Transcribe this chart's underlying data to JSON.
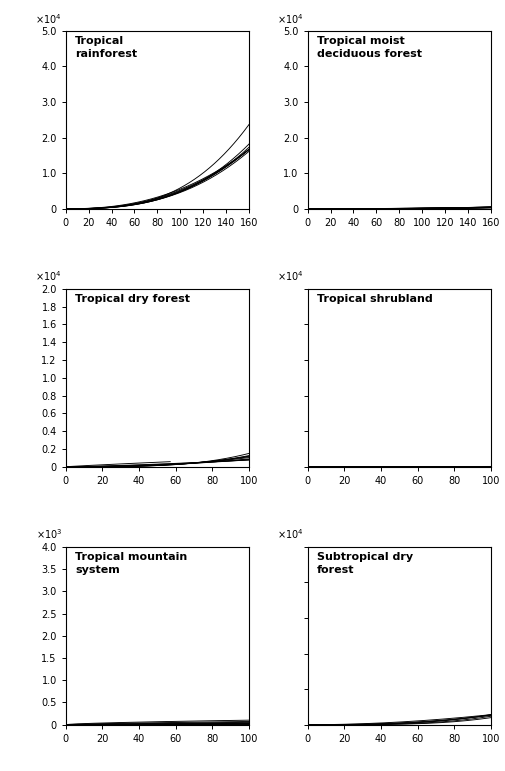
{
  "subplots": [
    {
      "title": "Tropical\nrainforest",
      "xmax": 160,
      "xticks": [
        0,
        20,
        40,
        60,
        80,
        100,
        120,
        140,
        160
      ],
      "ylim": 50000,
      "ytick_step": 10000,
      "yscale_exp": "4",
      "yscale_div": 10000,
      "equations": [
        {
          "a": 0.00673,
          "b": 2.97
        },
        {
          "a": 0.01,
          "b": 2.84
        },
        {
          "a": 0.015,
          "b": 2.75
        },
        {
          "a": 0.02,
          "b": 2.68
        },
        {
          "a": 0.028,
          "b": 2.62
        },
        {
          "a": 0.04,
          "b": 2.55
        },
        {
          "a": 0.06,
          "b": 2.47
        },
        {
          "a": 0.11,
          "b": 2.35
        }
      ]
    },
    {
      "title": "Tropical moist\ndeciduous forest",
      "xmax": 160,
      "xticks": [
        0,
        20,
        40,
        60,
        80,
        100,
        120,
        140,
        160
      ],
      "ylim": 50000,
      "ytick_step": 10000,
      "yscale_exp": "4",
      "yscale_div": 10000,
      "equations": [
        {
          "a": 3e-08,
          "b": 4.5
        },
        {
          "a": 1.2e-07,
          "b": 4.25
        },
        {
          "a": 5e-07,
          "b": 4.0
        },
        {
          "a": 2e-06,
          "b": 3.75
        },
        {
          "a": 8e-06,
          "b": 3.5
        },
        {
          "a": 3e-05,
          "b": 3.25
        },
        {
          "a": 0.00012,
          "b": 3.0
        },
        {
          "a": 0.00045,
          "b": 2.75
        },
        {
          "a": 0.0015,
          "b": 2.5
        },
        {
          "a": 0.005,
          "b": 2.25
        },
        {
          "a": 0.015,
          "b": 2.0
        },
        {
          "a": 0.05,
          "b": 1.75
        }
      ]
    },
    {
      "title": "Tropical dry forest",
      "xmax": 100,
      "xticks": [
        0,
        20,
        40,
        60,
        80,
        100
      ],
      "ylim": 20000,
      "ytick_step": 2000,
      "yscale_exp": "4",
      "yscale_div": 10000,
      "equations": [
        {
          "a": 0.00015,
          "b": 3.5,
          "xmax_line": 100
        },
        {
          "a": 0.0005,
          "b": 3.2,
          "xmax_line": 100
        },
        {
          "a": 0.0015,
          "b": 2.95,
          "xmax_line": 100
        },
        {
          "a": 0.0045,
          "b": 2.7,
          "xmax_line": 100
        },
        {
          "a": 0.013,
          "b": 2.45,
          "xmax_line": 100
        },
        {
          "a": 0.035,
          "b": 2.2,
          "xmax_line": 100
        },
        {
          "a": 0.1,
          "b": 1.95,
          "xmax_line": 100
        },
        {
          "a": 0.4,
          "b": 1.65,
          "xmax_line": 100
        },
        {
          "a": 1.5,
          "b": 1.35,
          "xmax_line": 100
        },
        {
          "a": 15.0,
          "b": 0.9,
          "xmax_line": 57
        }
      ]
    },
    {
      "title": "Tropical shrubland",
      "xmax": 100,
      "xticks": [
        0,
        20,
        40,
        60,
        80,
        100
      ],
      "ylim": 50000,
      "ytick_step": 10000,
      "yscale_exp": "4",
      "yscale_div": 10000,
      "no_yticklabels": true,
      "equations": [
        {
          "a": 3e-09,
          "b": 5.0
        },
        {
          "a": 1.5e-08,
          "b": 4.7
        },
        {
          "a": 7e-08,
          "b": 4.4
        },
        {
          "a": 3e-07,
          "b": 4.1
        },
        {
          "a": 1.3e-06,
          "b": 3.8
        },
        {
          "a": 5.5e-06,
          "b": 3.5
        },
        {
          "a": 2.2e-05,
          "b": 3.22
        },
        {
          "a": 8.5e-05,
          "b": 2.95
        },
        {
          "a": 0.0003,
          "b": 2.68
        },
        {
          "a": 0.001,
          "b": 2.42
        },
        {
          "a": 0.0035,
          "b": 2.16
        },
        {
          "a": 0.012,
          "b": 1.9
        },
        {
          "a": 0.04,
          "b": 1.65
        },
        {
          "a": 0.14,
          "b": 1.4
        }
      ]
    },
    {
      "title": "Tropical mountain\nsystem",
      "xmax": 100,
      "xticks": [
        0,
        20,
        40,
        60,
        80,
        100
      ],
      "ylim": 4000,
      "ytick_step": 500,
      "yscale_exp": "3",
      "yscale_div": 1000,
      "equations": [
        {
          "a": 0.002,
          "b": 1.8
        },
        {
          "a": 0.008,
          "b": 1.6
        },
        {
          "a": 0.025,
          "b": 1.42
        },
        {
          "a": 0.075,
          "b": 1.25
        },
        {
          "a": 0.2,
          "b": 1.1
        },
        {
          "a": 0.5,
          "b": 0.96
        },
        {
          "a": 1.2,
          "b": 0.83
        },
        {
          "a": 2.8,
          "b": 0.71
        },
        {
          "a": 6.5,
          "b": 0.6
        }
      ]
    },
    {
      "title": "Subtropical dry\nforest",
      "xmax": 100,
      "xticks": [
        0,
        20,
        40,
        60,
        80,
        100
      ],
      "ylim": 50000,
      "ytick_step": 10000,
      "yscale_exp": "4",
      "yscale_div": 10000,
      "no_yticklabels": true,
      "equations": [
        {
          "a": 5e-05,
          "b": 3.8
        },
        {
          "a": 0.0003,
          "b": 3.45
        },
        {
          "a": 0.0018,
          "b": 3.1
        },
        {
          "a": 0.01,
          "b": 2.72
        },
        {
          "a": 0.06,
          "b": 2.32
        },
        {
          "a": 0.45,
          "b": 1.9
        }
      ]
    }
  ]
}
